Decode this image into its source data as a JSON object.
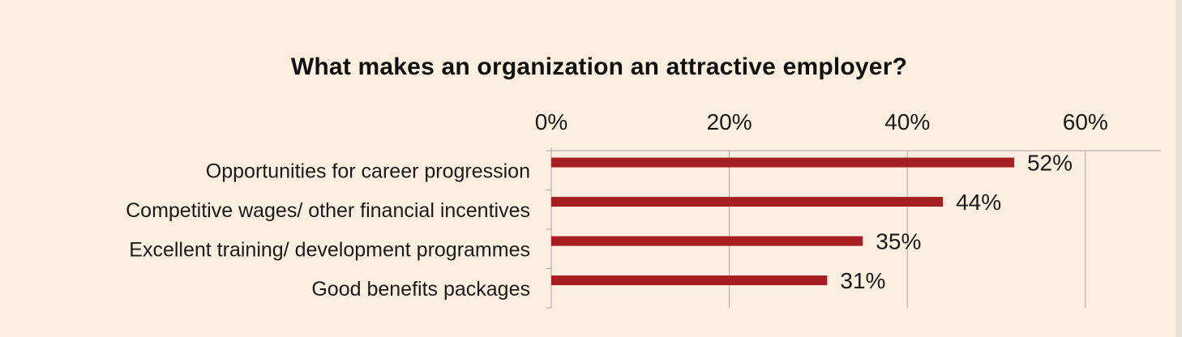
{
  "chart_data": {
    "type": "bar",
    "orientation": "horizontal",
    "title": "What makes an organization an attractive employer?",
    "categories": [
      "Opportunities for career progression",
      "Competitive wages/ other financial incentives",
      "Excellent training/ development programmes",
      "Good benefits packages"
    ],
    "values": [
      52,
      44,
      35,
      31
    ],
    "data_labels": [
      "52%",
      "44%",
      "35%",
      "31%"
    ],
    "x_ticks": [
      0,
      20,
      40,
      60
    ],
    "x_tick_labels": [
      "0%",
      "20%",
      "40%",
      "60%"
    ],
    "xlim": [
      0,
      69
    ],
    "x_axis_position": "top",
    "grid": true,
    "legend": "none",
    "bar_color": "#a51f22",
    "grid_color": "#a6a6a6"
  }
}
